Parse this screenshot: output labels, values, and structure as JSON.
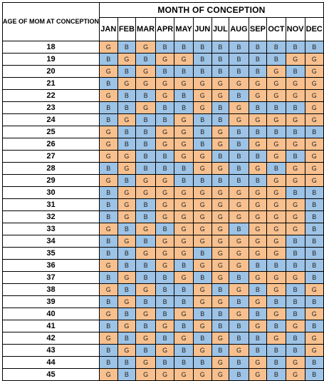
{
  "header": {
    "corner_label": "AGE OF MOM AT CONCEPTION",
    "title": "MONTH OF CONCEPTION",
    "months": [
      "JAN",
      "FEB",
      "MAR",
      "APR",
      "MAY",
      "JUN",
      "JUL",
      "AUG",
      "SEP",
      "OCT",
      "NOV",
      "DEC"
    ]
  },
  "colors": {
    "G": "#f7c08e",
    "B": "#9dc3e6"
  },
  "rows": [
    {
      "age": "18",
      "cells": [
        "G",
        "B",
        "G",
        "B",
        "B",
        "B",
        "B",
        "B",
        "B",
        "B",
        "B",
        "B"
      ]
    },
    {
      "age": "19",
      "cells": [
        "B",
        "G",
        "B",
        "G",
        "G",
        "B",
        "B",
        "B",
        "B",
        "B",
        "G",
        "G"
      ]
    },
    {
      "age": "20",
      "cells": [
        "G",
        "B",
        "G",
        "B",
        "B",
        "B",
        "B",
        "B",
        "B",
        "G",
        "B",
        "G"
      ]
    },
    {
      "age": "21",
      "cells": [
        "B",
        "G",
        "G",
        "G",
        "G",
        "G",
        "G",
        "G",
        "G",
        "G",
        "G",
        "G"
      ]
    },
    {
      "age": "22",
      "cells": [
        "G",
        "B",
        "B",
        "G",
        "B",
        "G",
        "G",
        "B",
        "G",
        "G",
        "G",
        "G"
      ]
    },
    {
      "age": "23",
      "cells": [
        "B",
        "B",
        "G",
        "B",
        "B",
        "G",
        "B",
        "G",
        "B",
        "B",
        "B",
        "G"
      ]
    },
    {
      "age": "24",
      "cells": [
        "B",
        "G",
        "B",
        "B",
        "G",
        "B",
        "B",
        "G",
        "G",
        "G",
        "G",
        "G"
      ]
    },
    {
      "age": "25",
      "cells": [
        "G",
        "B",
        "B",
        "G",
        "G",
        "B",
        "G",
        "B",
        "B",
        "B",
        "B",
        "B"
      ]
    },
    {
      "age": "26",
      "cells": [
        "G",
        "B",
        "B",
        "G",
        "G",
        "B",
        "G",
        "B",
        "G",
        "G",
        "G",
        "G"
      ]
    },
    {
      "age": "27",
      "cells": [
        "G",
        "G",
        "B",
        "B",
        "G",
        "G",
        "B",
        "B",
        "B",
        "G",
        "B",
        "G"
      ]
    },
    {
      "age": "28",
      "cells": [
        "B",
        "G",
        "B",
        "B",
        "B",
        "G",
        "G",
        "B",
        "G",
        "B",
        "G",
        "G"
      ]
    },
    {
      "age": "29",
      "cells": [
        "G",
        "B",
        "G",
        "G",
        "B",
        "B",
        "B",
        "B",
        "B",
        "G",
        "G",
        "G"
      ]
    },
    {
      "age": "30",
      "cells": [
        "B",
        "G",
        "G",
        "G",
        "G",
        "G",
        "G",
        "G",
        "G",
        "G",
        "B",
        "B"
      ]
    },
    {
      "age": "31",
      "cells": [
        "B",
        "G",
        "B",
        "G",
        "G",
        "G",
        "G",
        "G",
        "G",
        "G",
        "G",
        "B"
      ]
    },
    {
      "age": "32",
      "cells": [
        "B",
        "G",
        "B",
        "G",
        "G",
        "G",
        "G",
        "G",
        "G",
        "G",
        "G",
        "B"
      ]
    },
    {
      "age": "33",
      "cells": [
        "G",
        "B",
        "G",
        "B",
        "G",
        "G",
        "G",
        "B",
        "G",
        "G",
        "G",
        "B"
      ]
    },
    {
      "age": "34",
      "cells": [
        "B",
        "G",
        "B",
        "G",
        "G",
        "G",
        "G",
        "G",
        "G",
        "G",
        "B",
        "B"
      ]
    },
    {
      "age": "35",
      "cells": [
        "B",
        "B",
        "G",
        "G",
        "G",
        "B",
        "G",
        "G",
        "G",
        "G",
        "B",
        "B"
      ]
    },
    {
      "age": "36",
      "cells": [
        "G",
        "B",
        "B",
        "G",
        "B",
        "G",
        "G",
        "G",
        "B",
        "B",
        "B",
        "B"
      ]
    },
    {
      "age": "37",
      "cells": [
        "B",
        "G",
        "B",
        "B",
        "G",
        "B",
        "G",
        "B",
        "G",
        "G",
        "G",
        "B"
      ]
    },
    {
      "age": "38",
      "cells": [
        "G",
        "B",
        "G",
        "B",
        "B",
        "G",
        "B",
        "G",
        "B",
        "G",
        "B",
        "G"
      ]
    },
    {
      "age": "39",
      "cells": [
        "B",
        "G",
        "B",
        "B",
        "B",
        "G",
        "G",
        "B",
        "G",
        "B",
        "B",
        "B"
      ]
    },
    {
      "age": "40",
      "cells": [
        "G",
        "B",
        "G",
        "B",
        "G",
        "B",
        "B",
        "G",
        "B",
        "G",
        "B",
        "G"
      ]
    },
    {
      "age": "41",
      "cells": [
        "B",
        "G",
        "B",
        "G",
        "B",
        "G",
        "B",
        "B",
        "G",
        "B",
        "G",
        "B"
      ]
    },
    {
      "age": "42",
      "cells": [
        "G",
        "B",
        "G",
        "B",
        "G",
        "B",
        "G",
        "B",
        "B",
        "G",
        "B",
        "G"
      ]
    },
    {
      "age": "43",
      "cells": [
        "B",
        "G",
        "B",
        "G",
        "B",
        "G",
        "B",
        "G",
        "B",
        "B",
        "B",
        "G"
      ]
    },
    {
      "age": "44",
      "cells": [
        "B",
        "B",
        "G",
        "B",
        "B",
        "B",
        "G",
        "B",
        "G",
        "B",
        "G",
        "B"
      ]
    },
    {
      "age": "45",
      "cells": [
        "G",
        "B",
        "G",
        "G",
        "G",
        "G",
        "G",
        "B",
        "G",
        "B",
        "G",
        "B"
      ]
    }
  ]
}
